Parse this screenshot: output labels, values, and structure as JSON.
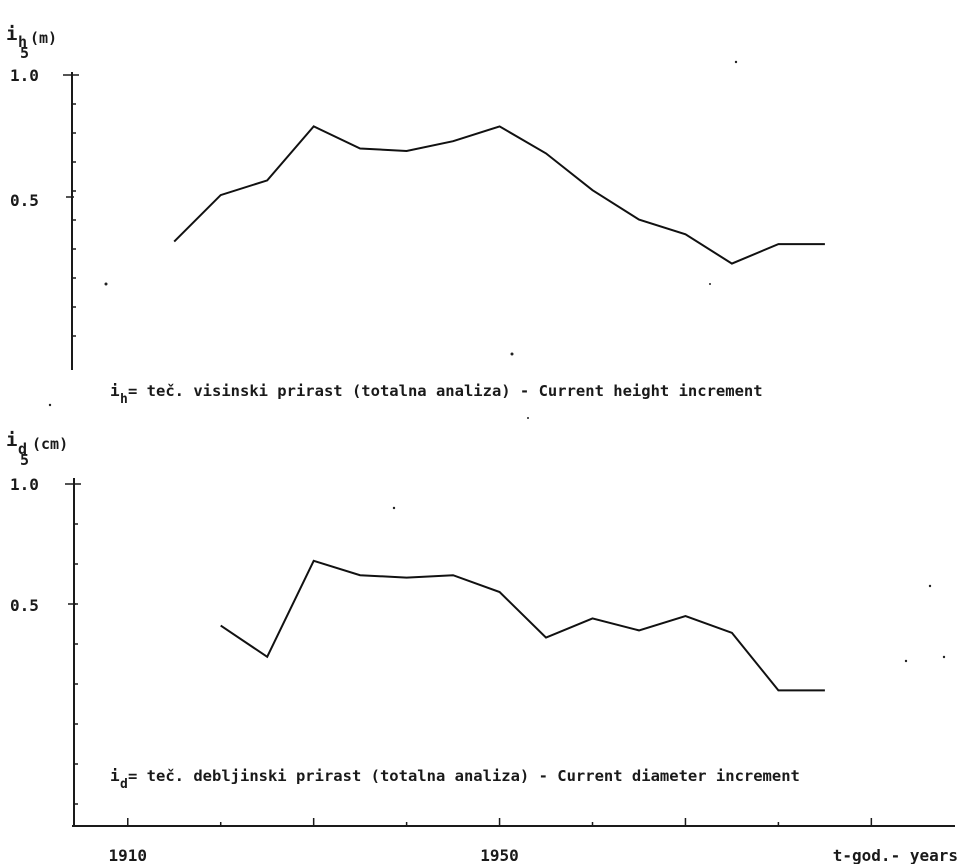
{
  "chart_data": [
    {
      "type": "line",
      "ylabel_main": "i",
      "ylabel_sub1": "h",
      "ylabel_sub2": "5",
      "ylabel_unit": "(m)",
      "y_ticks": [
        "1.0",
        "0.5"
      ],
      "ylim": [
        0,
        1.0
      ],
      "caption_main": "i",
      "caption_sub": "h",
      "caption_text": " = teč. visinski prirast (totalna analiza) - Current height increment",
      "series": [
        {
          "x": [
            1915,
            1920,
            1925,
            1930,
            1935,
            1940,
            1945,
            1950,
            1955,
            1960,
            1965,
            1970,
            1975,
            1980,
            1985
          ],
          "values": [
            0.32,
            0.51,
            0.57,
            0.79,
            0.7,
            0.69,
            0.73,
            0.79,
            0.68,
            0.53,
            0.41,
            0.35,
            0.23,
            0.31,
            0.31
          ]
        }
      ]
    },
    {
      "type": "line",
      "ylabel_main": "i",
      "ylabel_sub1": "d",
      "ylabel_sub2": "5",
      "ylabel_unit": "(cm)",
      "y_ticks": [
        "1.0",
        "0.5"
      ],
      "ylim": [
        0,
        1.0
      ],
      "caption_main": "i",
      "caption_sub": "d",
      "caption_text": " = teč. debljinski prirast (totalna analiza) - Current diameter increment",
      "series": [
        {
          "x": [
            1920,
            1925,
            1930,
            1935,
            1940,
            1945,
            1950,
            1955,
            1960,
            1965,
            1970,
            1975,
            1980,
            1985
          ],
          "values": [
            0.41,
            0.28,
            0.68,
            0.62,
            0.61,
            0.62,
            0.55,
            0.36,
            0.44,
            0.39,
            0.45,
            0.38,
            0.14,
            0.14
          ]
        }
      ]
    }
  ],
  "x_axis": {
    "xlim": [
      1904,
      1999
    ],
    "tick_years": [
      1910,
      1920,
      1930,
      1940,
      1950,
      1960,
      1970,
      1980,
      1990
    ],
    "labels": [
      "1910",
      "1950"
    ],
    "label_years": [
      1910,
      1950
    ],
    "xlabel": "t-god.- years"
  }
}
